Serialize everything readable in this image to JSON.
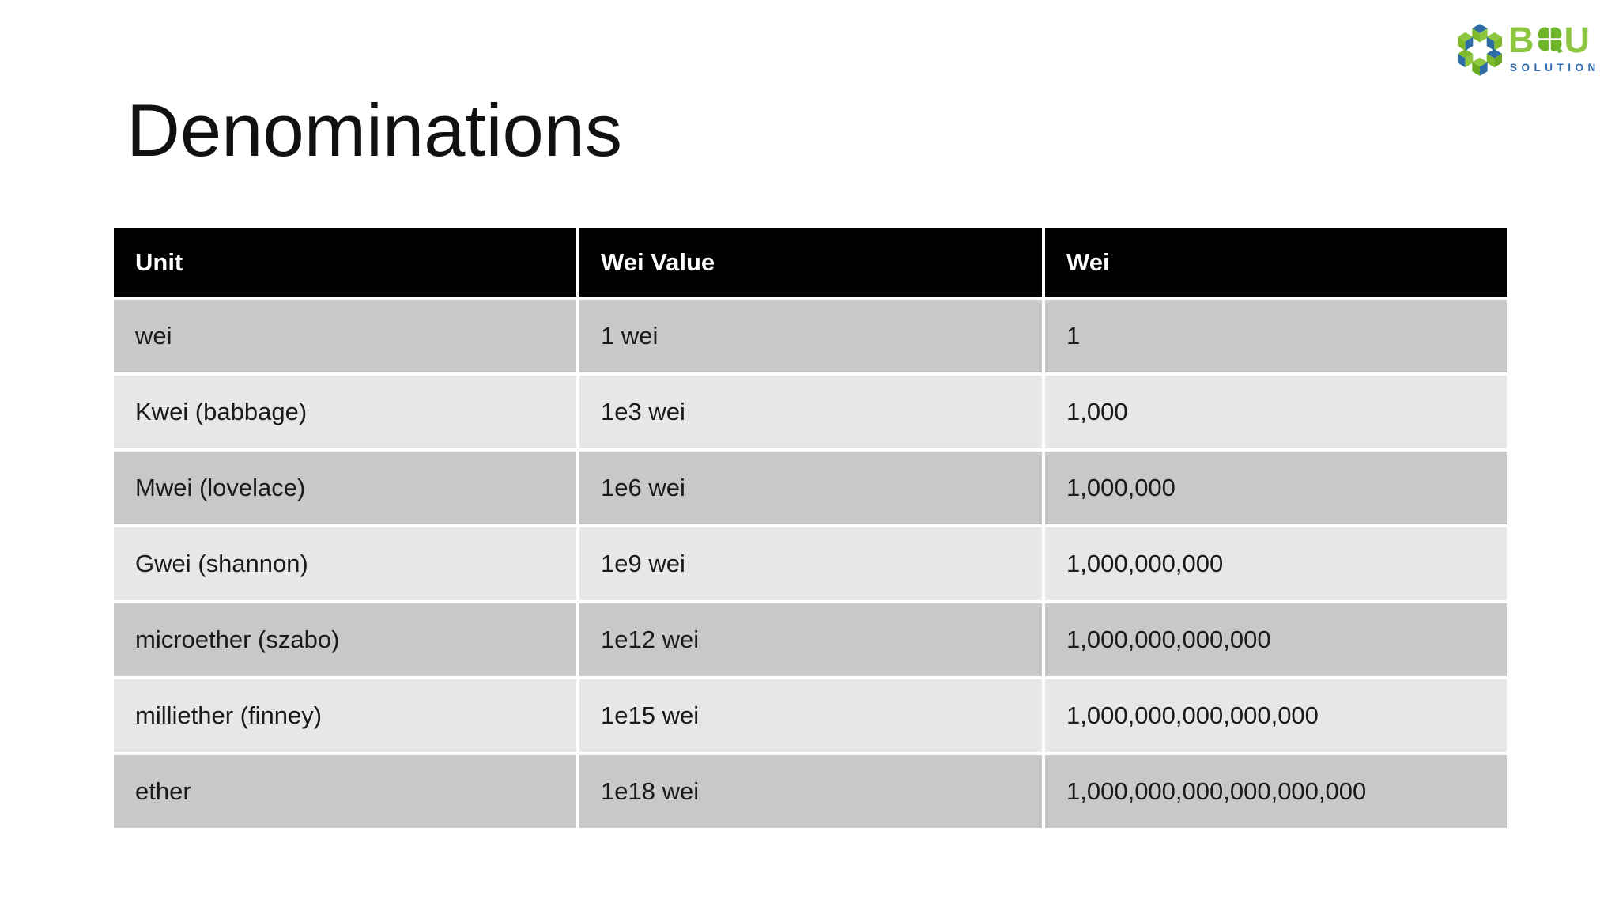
{
  "slide": {
    "title": "Denominations"
  },
  "logo": {
    "word_b": "B",
    "word_u": "U",
    "subtitle": "SOLUTION",
    "cubes_icon": "hex-cube-cluster-icon",
    "clover_icon": "four-leaf-clover-icon",
    "colors": {
      "green": "#7db928",
      "green_light": "#8dc63f",
      "green_dark": "#69a91f",
      "blue": "#2d6ca5",
      "subtitle_blue": "#2f6bb0"
    }
  },
  "table": {
    "headers": [
      "Unit",
      "Wei Value",
      "Wei"
    ],
    "rows": [
      [
        "wei",
        "1 wei",
        "1"
      ],
      [
        "Kwei (babbage)",
        "1e3 wei",
        "1,000"
      ],
      [
        "Mwei (lovelace)",
        "1e6 wei",
        "1,000,000"
      ],
      [
        "Gwei (shannon)",
        "1e9 wei",
        "1,000,000,000"
      ],
      [
        "microether (szabo)",
        "1e12 wei",
        "1,000,000,000,000"
      ],
      [
        "milliether (finney)",
        "1e15 wei",
        "1,000,000,000,000,000"
      ],
      [
        "ether",
        "1e18 wei",
        "1,000,000,000,000,000,000"
      ]
    ],
    "colors": {
      "header_bg": "#000000",
      "header_text": "#ffffff",
      "row_dark": "#c8c8c8",
      "row_light": "#e7e7e7",
      "cell_text": "#1a1a1a",
      "divider": "#ffffff"
    }
  }
}
